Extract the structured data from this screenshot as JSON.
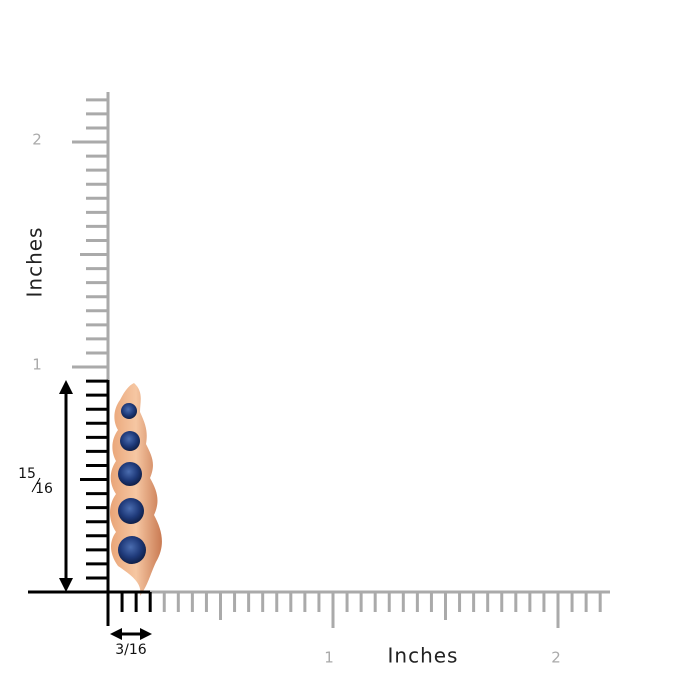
{
  "y_axis": {
    "label": "Inches",
    "ticks": [
      "1",
      "2"
    ]
  },
  "x_axis": {
    "label": "Inches",
    "ticks": [
      "1",
      "2"
    ]
  },
  "dimensions": {
    "height": {
      "numerator": "15",
      "denominator": "16"
    },
    "width": "3/16"
  }
}
